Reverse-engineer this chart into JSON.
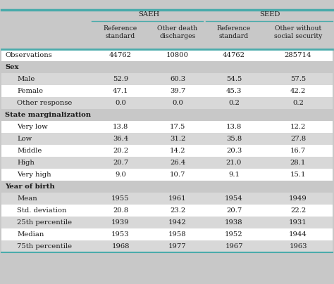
{
  "col_headers": [
    "Reference\nstandard",
    "Other death\ndischarges",
    "Reference\nstandard",
    "Other without\nsocial security"
  ],
  "sections": [
    {
      "header": null,
      "rows": [
        {
          "label": "Observations",
          "values": [
            "44762",
            "10800",
            "44762",
            "285714"
          ],
          "indent": false
        }
      ]
    },
    {
      "header": "Sex",
      "rows": [
        {
          "label": "Male",
          "values": [
            "52.9",
            "60.3",
            "54.5",
            "57.5"
          ],
          "indent": true
        },
        {
          "label": "Female",
          "values": [
            "47.1",
            "39.7",
            "45.3",
            "42.2"
          ],
          "indent": true
        },
        {
          "label": "Other response",
          "values": [
            "0.0",
            "0.0",
            "0.2",
            "0.2"
          ],
          "indent": true
        }
      ]
    },
    {
      "header": "State marginalization",
      "rows": [
        {
          "label": "Very low",
          "values": [
            "13.8",
            "17.5",
            "13.8",
            "12.2"
          ],
          "indent": true
        },
        {
          "label": "Low",
          "values": [
            "36.4",
            "31.2",
            "35.8",
            "27.8"
          ],
          "indent": true
        },
        {
          "label": "Middle",
          "values": [
            "20.2",
            "14.2",
            "20.3",
            "16.7"
          ],
          "indent": true
        },
        {
          "label": "High",
          "values": [
            "20.7",
            "26.4",
            "21.0",
            "28.1"
          ],
          "indent": true
        },
        {
          "label": "Very high",
          "values": [
            "9.0",
            "10.7",
            "9.1",
            "15.1"
          ],
          "indent": true
        }
      ]
    },
    {
      "header": "Year of birth",
      "rows": [
        {
          "label": "Mean",
          "values": [
            "1955",
            "1961",
            "1954",
            "1949"
          ],
          "indent": true
        },
        {
          "label": "Std. deviation",
          "values": [
            "20.8",
            "23.2",
            "20.7",
            "22.2"
          ],
          "indent": true
        },
        {
          "label": "25th percentile",
          "values": [
            "1939",
            "1942",
            "1938",
            "1931"
          ],
          "indent": true
        },
        {
          "label": "Median",
          "values": [
            "1953",
            "1958",
            "1952",
            "1944"
          ],
          "indent": true
        },
        {
          "label": "75th percentile",
          "values": [
            "1968",
            "1977",
            "1967",
            "1963"
          ],
          "indent": true
        }
      ]
    }
  ],
  "bg_outer": "#c8c8c8",
  "bg_white": "#ffffff",
  "bg_light": "#d8d8d8",
  "bg_section_hdr": "#c8c8c8",
  "text_color": "#1a1a1a",
  "teal": "#4aabab",
  "font_size": 7.2,
  "header_font_size": 7.2
}
